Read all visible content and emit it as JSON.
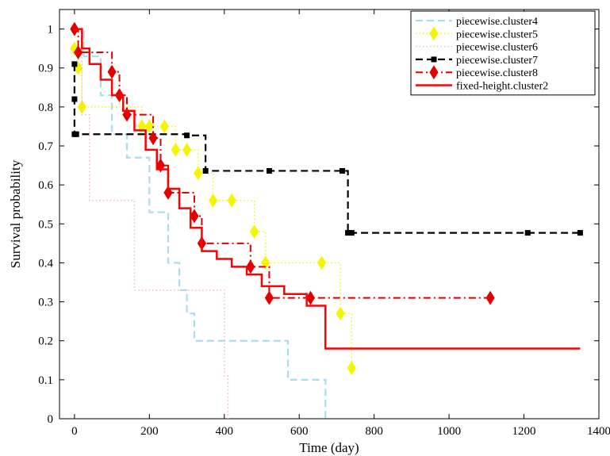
{
  "chart_data": {
    "type": "line",
    "title": "",
    "xlabel": "Time (day)",
    "ylabel": "Survival probability",
    "xlim": [
      -40,
      1400
    ],
    "ylim": [
      0,
      1.05
    ],
    "xticks": [
      0,
      200,
      400,
      600,
      800,
      1000,
      1200,
      1400
    ],
    "yticks": [
      0,
      0.1,
      0.2,
      0.3,
      0.4,
      0.5,
      0.6,
      0.7,
      0.8,
      0.9,
      1
    ],
    "grid": false,
    "legend_position": "top-right",
    "series": [
      {
        "name": "piecewise.cluster4",
        "color": "#a8dcf0",
        "style": "dashed",
        "marker": "none",
        "x": [
          0,
          25,
          70,
          100,
          140,
          200,
          250,
          280,
          300,
          320,
          360,
          570,
          660,
          670,
          670
        ],
        "y": [
          1.0,
          0.93,
          0.83,
          0.73,
          0.67,
          0.53,
          0.4,
          0.33,
          0.27,
          0.2,
          0.2,
          0.1,
          0.1,
          0.05,
          0.0
        ]
      },
      {
        "name": "piecewise.cluster5",
        "color": "#f5f500",
        "style": "dotted",
        "marker": "diamond",
        "x": [
          0,
          10,
          20,
          180,
          200,
          240,
          270,
          300,
          330,
          370,
          420,
          480,
          510,
          660,
          710,
          740
        ],
        "y": [
          0.95,
          0.9,
          0.8,
          0.75,
          0.75,
          0.75,
          0.69,
          0.69,
          0.63,
          0.56,
          0.56,
          0.48,
          0.4,
          0.4,
          0.27,
          0.13
        ]
      },
      {
        "name": "piecewise.cluster6",
        "color": "#f2b8b8",
        "style": "dotted",
        "marker": "none",
        "x": [
          0,
          20,
          40,
          140,
          160,
          290,
          400,
          410
        ],
        "y": [
          1.0,
          0.78,
          0.56,
          0.56,
          0.33,
          0.33,
          0.11,
          0.0
        ]
      },
      {
        "name": "piecewise.cluster7",
        "color": "#000000",
        "style": "dashed",
        "marker": "square",
        "x": [
          0,
          0,
          0,
          5,
          300,
          350,
          520,
          715,
          730,
          740,
          1210,
          1350
        ],
        "y": [
          0.91,
          0.82,
          0.73,
          0.73,
          0.727,
          0.636,
          0.636,
          0.636,
          0.477,
          0.477,
          0.477,
          0.477
        ]
      },
      {
        "name": "piecewise.cluster8",
        "color": "#e00000",
        "style": "dashdot",
        "marker": "diamond",
        "x": [
          0,
          10,
          100,
          120,
          140,
          210,
          230,
          250,
          320,
          340,
          470,
          520,
          630,
          1110
        ],
        "y": [
          1.0,
          0.94,
          0.89,
          0.83,
          0.78,
          0.72,
          0.65,
          0.58,
          0.52,
          0.45,
          0.39,
          0.31,
          0.31,
          0.31
        ]
      },
      {
        "name": "fixed-height.cluster2",
        "color": "#ff0000",
        "style": "solid",
        "marker": "none",
        "x": [
          0,
          20,
          40,
          70,
          100,
          130,
          160,
          190,
          220,
          250,
          280,
          310,
          340,
          380,
          420,
          460,
          500,
          560,
          620,
          670,
          1350
        ],
        "y": [
          1.0,
          0.95,
          0.91,
          0.87,
          0.83,
          0.79,
          0.74,
          0.69,
          0.64,
          0.59,
          0.54,
          0.49,
          0.43,
          0.41,
          0.39,
          0.37,
          0.34,
          0.32,
          0.29,
          0.18,
          0.18
        ]
      }
    ]
  }
}
